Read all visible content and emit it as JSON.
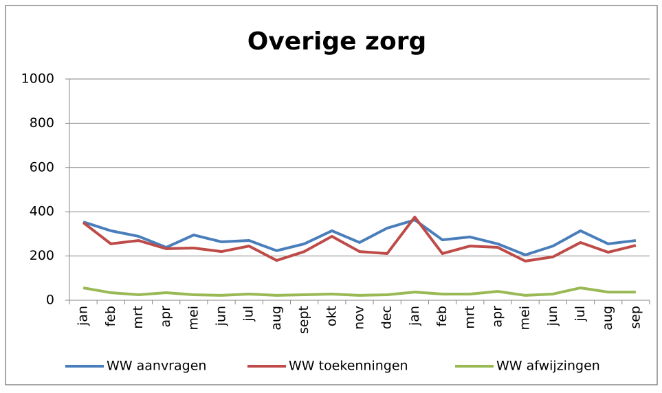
{
  "chart_data": {
    "type": "line",
    "title": "Overige zorg",
    "categories": [
      "jan",
      "feb",
      "mrt",
      "apr",
      "mei",
      "jun",
      "jul",
      "aug",
      "sept",
      "okt",
      "nov",
      "dec",
      "jan",
      "feb",
      "mrt",
      "apr",
      "mei",
      "jun",
      "jul",
      "aug",
      "sep"
    ],
    "series": [
      {
        "name": "WW aanvragen",
        "color": "#4a7ebb",
        "values": [
          354,
          314,
          289,
          239,
          295,
          264,
          270,
          224,
          255,
          314,
          261,
          326,
          363,
          273,
          286,
          255,
          205,
          245,
          314,
          255,
          270
        ]
      },
      {
        "name": "WW toekenningen",
        "color": "#be4b48",
        "values": [
          351,
          255,
          270,
          233,
          236,
          220,
          245,
          180,
          220,
          289,
          220,
          211,
          376,
          211,
          245,
          239,
          177,
          196,
          261,
          217,
          248
        ]
      },
      {
        "name": "WW afwijzingen",
        "color": "#98b954",
        "values": [
          56,
          34,
          25,
          34,
          25,
          22,
          28,
          22,
          25,
          28,
          22,
          25,
          37,
          28,
          28,
          40,
          22,
          28,
          56,
          37,
          37
        ]
      }
    ],
    "ylim": [
      0,
      1000
    ],
    "yticks": [
      0,
      200,
      400,
      600,
      800,
      1000
    ],
    "grid": true,
    "legend": "bottom"
  }
}
